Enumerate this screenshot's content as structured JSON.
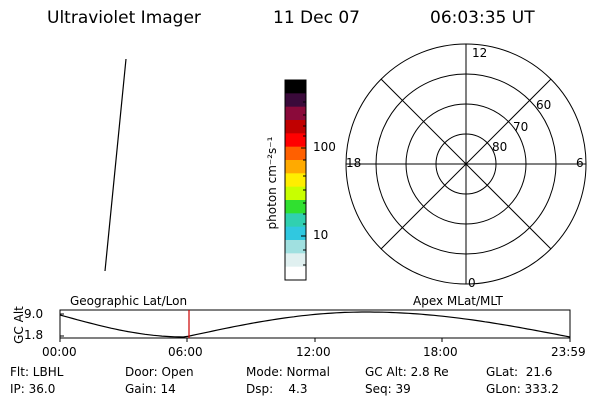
{
  "header": {
    "instrument": "Ultraviolet Imager",
    "date": "11 Dec 07",
    "time": "06:03:35 UT"
  },
  "colorbar": {
    "unit_label": "photon cm⁻²s⁻¹",
    "ticks": [
      "100",
      "10"
    ],
    "colors": [
      "#000000",
      "#3a0a3a",
      "#8a0a3a",
      "#c00000",
      "#ff0000",
      "#ff6000",
      "#ffaa00",
      "#ffee00",
      "#c8ff00",
      "#30e030",
      "#30d0b0",
      "#30c8e0",
      "#a0e0e0",
      "#e0f0f0",
      "#ffffff"
    ]
  },
  "polar_plot": {
    "mlt_labels": [
      "12",
      "18",
      "6",
      "0"
    ],
    "lat_labels": [
      "60",
      "70",
      "80"
    ]
  },
  "timeline": {
    "left_title": "Geographic Lat/Lon",
    "right_title": "Apex MLat/MLT",
    "y_axis_label": "GC Alt",
    "y_ticks": [
      "9.0",
      "1.8"
    ],
    "x_ticks": [
      "00:00",
      "06:00",
      "12:00",
      "18:00",
      "23:59"
    ],
    "current_time_marker": "06:03:35",
    "marker_color": "#cc0000"
  },
  "info_panel": {
    "rows": [
      [
        "Flt: LBHL",
        "Door: Open",
        "Mode: Normal",
        "GC Alt: 2.8 Re",
        "GLat:  21.6"
      ],
      [
        "IP: 36.0",
        "Gain: 14",
        "Dsp:    4.3",
        "Seq: 39",
        "GLon: 333.2"
      ]
    ]
  }
}
